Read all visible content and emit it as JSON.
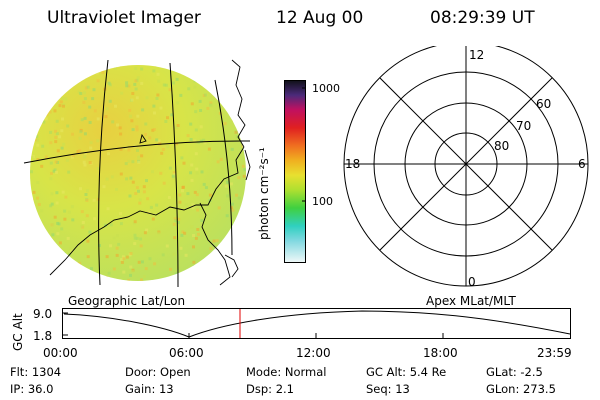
{
  "header": {
    "instrument": "Ultraviolet Imager",
    "date": "12 Aug 00",
    "time": "08:29:39 UT"
  },
  "colorbar": {
    "unit_label": "photon cm⁻²s⁻¹",
    "ticks": [
      "1000",
      "100"
    ]
  },
  "polar_plot": {
    "mlt_labels": [
      "12",
      "18",
      "6",
      "0"
    ],
    "lat_labels": [
      "60",
      "70",
      "80"
    ]
  },
  "image_labels": {
    "left": "Geographic Lat/Lon",
    "right": "Apex MLat/MLT"
  },
  "altitude_plot": {
    "axis_label": "GC Alt",
    "y_ticks": [
      "9.0",
      "1.8"
    ],
    "x_ticks": [
      "00:00",
      "06:00",
      "12:00",
      "18:00",
      "23:59"
    ],
    "marker_time": "08:29:39"
  },
  "status": {
    "row1": [
      {
        "label": "Flt:",
        "value": "1304"
      },
      {
        "label": "Door:",
        "value": "Open"
      },
      {
        "label": "Mode:",
        "value": "Normal"
      },
      {
        "label": "GC Alt:",
        "value": "5.4 Re"
      },
      {
        "label": "GLat:",
        "value": "-2.5"
      }
    ],
    "row2": [
      {
        "label": "IP:",
        "value": "36.0"
      },
      {
        "label": "Gain:",
        "value": "13"
      },
      {
        "label": "Dsp:",
        "value": "2.1"
      },
      {
        "label": "Seq:",
        "value": "13"
      },
      {
        "label": "GLon:",
        "value": "273.5"
      }
    ]
  },
  "colors": {
    "image_base": "#dfe84a",
    "marker": "#e00000"
  }
}
